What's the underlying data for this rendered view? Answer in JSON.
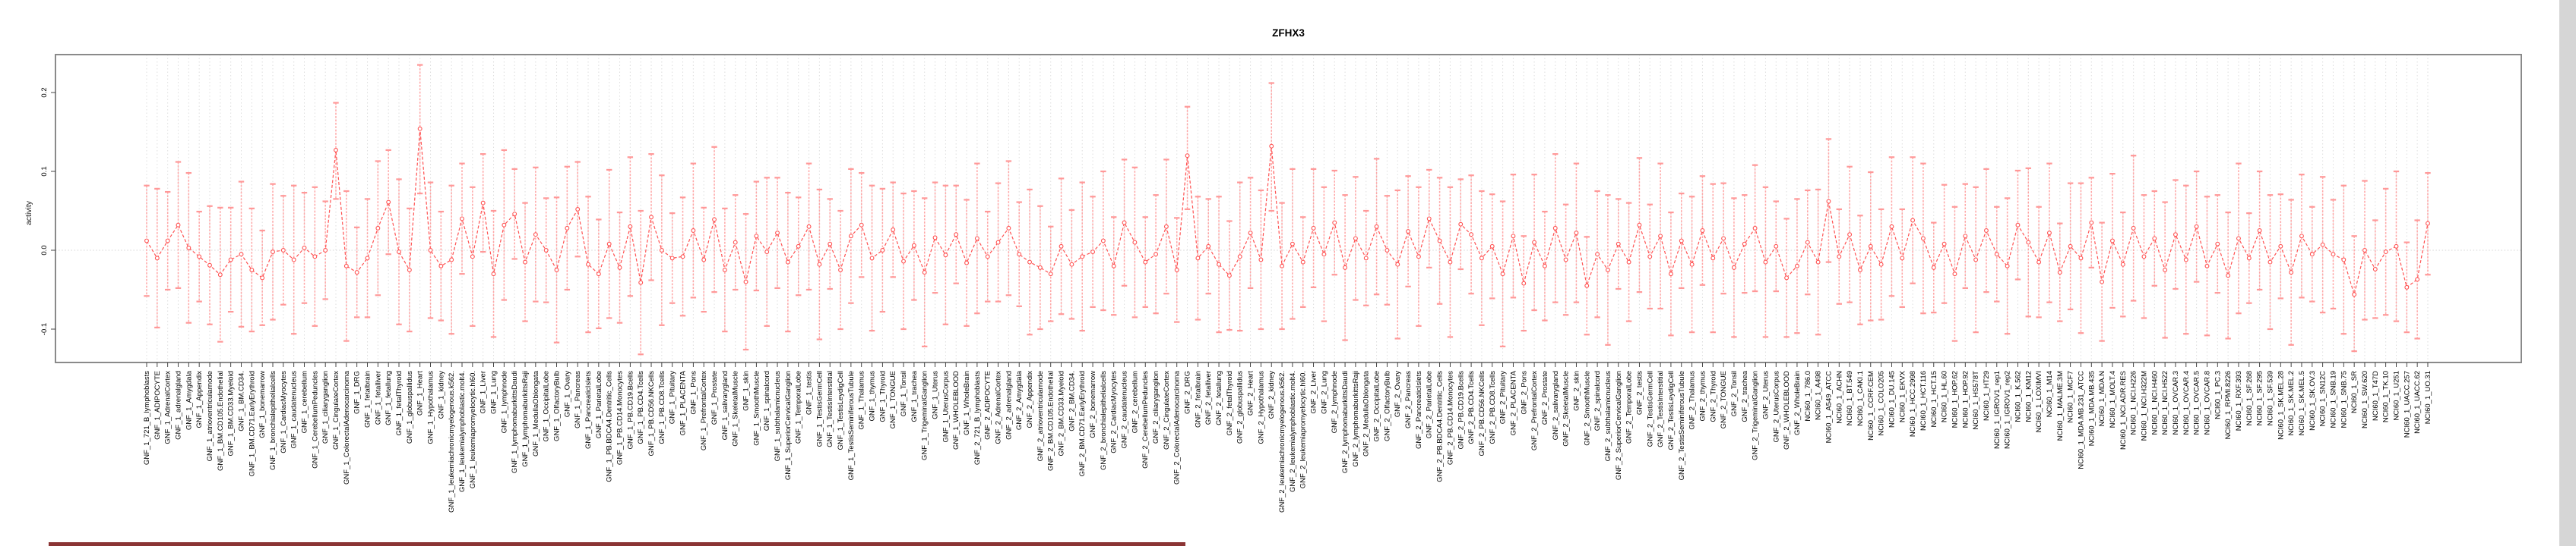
{
  "chart_data": {
    "type": "line-errorbar",
    "title": "ZFHX3",
    "ylabel": "activity",
    "ytick_labels": [
      "0.2",
      "0.1",
      "0.0",
      "-0.1"
    ],
    "yticks": [
      0.2,
      0.1,
      0.0,
      -0.1
    ],
    "ylim": [
      -0.142,
      0.248
    ],
    "zero_reference_line": true,
    "gridlines": "dotted vertical line at every category; dotted horizontal line at 0",
    "legend": "none",
    "n_categories": 218,
    "ci_halfwidth_cycle": [
      0.07,
      0.088,
      0.062,
      0.08,
      0.095,
      0.057,
      0.075,
      0.085,
      0.066,
      0.092,
      0.078,
      0.06,
      0.086,
      0.069,
      0.094
    ],
    "groups": [
      {
        "prefix": "GNF_1_",
        "tissues": [
          "721_B_lymphoblasts",
          "ADIPOCYTE",
          "AdrenalCortex",
          "adrenalgland",
          "Amygdala",
          "Appendix",
          "atrioventricularnode",
          "BM.CD105.Endothelial",
          "BM.CD33.Myeloid",
          "BM.CD34.",
          "BM.CD71.EarlyErythroid",
          "bonemarrow",
          "bronchialepithelialcells",
          "CardiacMyocytes",
          "caudatenucleus",
          "cerebellum",
          "CerebellumPeduncles",
          "ciliaryganglion",
          "CingulateCortex",
          "ColorectalAdenocarcinoma",
          "DRG",
          "fetalbrain",
          "fetalliver",
          "fetallung",
          "fetalThyroid",
          "globuspallidus",
          "Heart",
          "Hypothalamus",
          "kidney",
          "leukemiachronicmyelogenous.k562.",
          "leukemialymphoblastic.molt4.",
          "leukemiapromyelocytic.hl60.",
          "Liver",
          "Lung",
          "lymphnode",
          "lymphomaburkittsDaudi",
          "lymphomaburkittsRaji",
          "MedullaOblongata",
          "OccipitalLobe",
          "OlfactoryBulb",
          "Ovary",
          "Pancreas",
          "PancreaticIslets",
          "ParietalLobe",
          "PB.BDCA4.Dentritic_Cells",
          "PB.CD14.Monocytes",
          "PB.CD19.Bcells",
          "PB.CD4.Tcells",
          "PB.CD56.NKCells",
          "PB.CD8.Tcells",
          "Pituitary",
          "PLACENTA",
          "Pons",
          "PrefrontalCortex",
          "Prostate",
          "salivarygland",
          "SkeletalMuscle",
          "skin",
          "SmoothMuscle",
          "spinalcord",
          "subthalamicnucleus",
          "SuperiorCervicalGanglion",
          "TemporalLobe",
          "testis",
          "TestisGermCell",
          "TestisInterstitial",
          "TestisLeydigCell",
          "TestisSeminiferousTubule",
          "Thalamus",
          "thymus",
          "Thyroid",
          "TONGUE",
          "Tonsil",
          "trachea",
          "TrigeminalGanglion",
          "Uterus",
          "UterusCorpus",
          "WHOLEBLOOD",
          "WholeBrain"
        ],
        "means": [
          0.012,
          -0.01,
          0.012,
          0.032,
          0.003,
          -0.008,
          -0.019,
          -0.031,
          -0.012,
          -0.005,
          -0.025,
          -0.035,
          -0.002,
          0.0,
          -0.012,
          0.003,
          -0.008,
          0.0,
          0.127,
          -0.02,
          -0.028,
          -0.01,
          0.028,
          0.061,
          -0.002,
          -0.025,
          0.154,
          0.0,
          -0.02,
          -0.012,
          0.04,
          -0.008,
          0.06,
          -0.03,
          0.032,
          0.046,
          -0.015,
          0.02,
          0.0,
          -0.025,
          0.028,
          0.052,
          -0.018,
          -0.03,
          0.008,
          -0.022,
          0.03,
          -0.041,
          0.042,
          0.0,
          -0.01,
          -0.008,
          0.025,
          -0.012,
          0.039,
          -0.025,
          0.01,
          -0.04,
          0.018,
          -0.002,
          0.022,
          -0.015,
          0.005,
          0.03,
          -0.018,
          0.008,
          -0.025,
          0.018,
          0.032,
          -0.01,
          0.0,
          0.026,
          -0.014,
          0.006,
          -0.028,
          0.016,
          -0.006,
          0.02,
          -0.016
        ]
      },
      {
        "prefix": "GNF_2_",
        "tissues": [
          "721_B_lymphoblasts",
          "ADIPOCYTE",
          "AdrenalCortex",
          "adrenalgland",
          "Amygdala",
          "Appendix",
          "atrioventricularnode",
          "BM.CD105.Endothelial",
          "BM.CD33.Myeloid",
          "BM.CD34.",
          "BM.CD71.EarlyErythroid",
          "bonemarrow",
          "bronchialepithelialcells",
          "CardiacMyocytes",
          "caudatenucleus",
          "cerebellum",
          "CerebellumPeduncles",
          "ciliaryganglion",
          "CingulateCortex",
          "ColorectalAdenocarcinoma",
          "DRG",
          "fetalbrain",
          "fetalliver",
          "fetallung",
          "fetalThyroid",
          "globuspallidus",
          "Heart",
          "Hypothalamus",
          "kidney",
          "leukemiachronicmyelogenous.k562.",
          "leukemialymphoblastic.molt4.",
          "leukemiapromyelocytic.hl60.",
          "Liver",
          "Lung",
          "lymphnode",
          "lymphomaburkittsDaudi",
          "lymphomaburkittsRaji",
          "MedullaOblongata",
          "OccipitalLobe",
          "OlfactoryBulb",
          "Ovary",
          "Pancreas",
          "PancreaticIslets",
          "ParietalLobe",
          "PB.BDCA4.Dentritic_Cells",
          "PB.CD14.Monocytes",
          "PB.CD19.Bcells",
          "PB.CD4.Tcells",
          "PB.CD56.NKCells",
          "PB.CD8.Tcells",
          "Pituitary",
          "PLACENTA",
          "Pons",
          "PrefrontalCortex",
          "Prostate",
          "salivarygland",
          "SkeletalMuscle",
          "skin",
          "SmoothMuscle",
          "spinalcord",
          "subthalamicnucleus",
          "SuperiorCervicalGanglion",
          "TemporalLobe",
          "testis",
          "TestisGermCell",
          "TestisInterstitial",
          "TestisLeydigCell",
          "TestisSeminiferousTubule",
          "Thalamus",
          "thymus",
          "Thyroid",
          "TONGUE",
          "Tonsil",
          "trachea",
          "TrigeminalGanglion",
          "Uterus",
          "UterusCorpus",
          "WHOLEBLOOD",
          "WholeBrain"
        ],
        "means": [
          0.015,
          -0.008,
          0.01,
          0.028,
          -0.005,
          -0.015,
          -0.022,
          -0.03,
          0.005,
          -0.018,
          -0.008,
          -0.002,
          0.012,
          -0.02,
          0.035,
          0.01,
          -0.015,
          -0.005,
          0.03,
          -0.025,
          0.12,
          -0.01,
          0.005,
          -0.018,
          -0.032,
          -0.008,
          0.022,
          -0.012,
          0.132,
          -0.02,
          0.008,
          -0.015,
          0.028,
          -0.005,
          0.035,
          -0.022,
          0.015,
          -0.01,
          0.03,
          0.0,
          -0.018,
          0.024,
          -0.008,
          0.04,
          0.012,
          -0.015,
          0.033,
          0.02,
          -0.01,
          0.005,
          -0.03,
          0.018,
          -0.042,
          0.01,
          -0.02,
          0.028,
          -0.012,
          0.022,
          -0.045,
          -0.005,
          -0.025,
          0.008,
          -0.015,
          0.032,
          -0.008,
          0.018,
          -0.03,
          0.012,
          -0.018,
          0.025,
          -0.01,
          0.015,
          -0.022,
          0.008,
          0.028,
          -0.015,
          0.005,
          -0.035,
          -0.02
        ]
      },
      {
        "prefix": "NCI60_1_",
        "tissues": [
          "786.0",
          "A498",
          "A549_ATCC",
          "ACHN",
          "BT.549",
          "CAKI.1",
          "CCRF.CEM",
          "COLO205",
          "DU.145",
          "EKVX",
          "HCC.2998",
          "HCT.116",
          "HCT.15",
          "HL.60",
          "HOP.62",
          "HOP.92",
          "HS578T",
          "HT29",
          "IGROV1_rep1",
          "IGROV1_rep2",
          "K.562",
          "KM12",
          "LOXIMVI",
          "M14",
          "MALME.3M",
          "MCF7",
          "MDA.MB.231_ATCC",
          "MDA.MB.435",
          "MDA.N",
          "MOLT.4",
          "NCI.ADR.RES",
          "NCI.H226",
          "NCI.H322M",
          "NCI.H460",
          "NCI.H522",
          "OVCAR.3",
          "OVCAR.4",
          "OVCAR.5",
          "OVCAR.8",
          "PC.3",
          "RPMI.8226",
          "RXF.393",
          "SF.268",
          "SF.295",
          "SF.539",
          "SK.MEL.28",
          "SK.MEL.2",
          "SK.MEL.5",
          "SK.OV.3",
          "SN12C",
          "SNB.19",
          "SNB.75",
          "SR",
          "SW.620",
          "T47D",
          "TK.10",
          "U251",
          "UACC.257",
          "UACC.62",
          "UO.31"
        ],
        "means": [
          0.01,
          -0.015,
          0.062,
          -0.008,
          0.02,
          -0.025,
          0.005,
          -0.018,
          0.03,
          -0.01,
          0.038,
          0.015,
          -0.022,
          0.008,
          -0.03,
          0.018,
          -0.012,
          0.025,
          -0.005,
          -0.02,
          0.032,
          0.01,
          -0.015,
          0.022,
          -0.028,
          0.005,
          -0.01,
          0.035,
          -0.04,
          0.012,
          -0.018,
          0.028,
          -0.008,
          0.015,
          -0.025,
          0.02,
          -0.012,
          0.03,
          -0.02,
          0.008,
          -0.032,
          0.015,
          -0.01,
          0.025,
          -0.015,
          0.005,
          -0.028,
          0.018,
          -0.005,
          0.007,
          -0.005,
          -0.012,
          -0.056,
          0.0,
          -0.024,
          -0.002,
          0.005,
          -0.047,
          -0.037,
          0.034
        ]
      }
    ],
    "ci_overrides": {
      "GNF_1_CingulateCortex": [
        0.065,
        0.187
      ],
      "GNF_1_Heart": [
        0.072,
        0.235
      ],
      "GNF_1_PB.CD4.Tcells": [
        -0.132,
        0.05
      ],
      "GNF_2_DRG": [
        0.052,
        0.182
      ],
      "GNF_2_kidney": [
        0.05,
        0.212
      ],
      "NCI60_1_A549_ATCC": [
        -0.015,
        0.141
      ],
      "NCI60_1_SR": [
        -0.128,
        0.018
      ],
      "NCI60_1_UO.31": [
        -0.031,
        0.098
      ]
    }
  },
  "colors": {
    "point_line": "#ff5252",
    "errorbar": "#ffa6a6",
    "errorbar_cap": "#ff9898",
    "gridline": "#dedede",
    "zero_line": "#d4d4d4",
    "box_border": "#8a8a8a",
    "axis_tick": "#333333",
    "text": "#000000",
    "background": "#ffffff",
    "bottom_bar": "#8b3434",
    "right_strip": "#d6d6d6"
  }
}
